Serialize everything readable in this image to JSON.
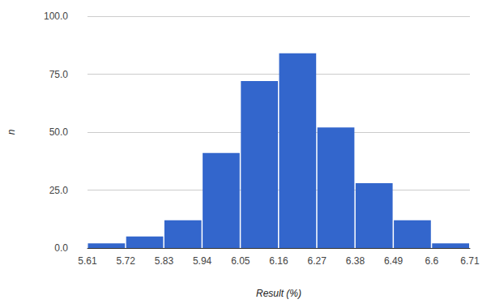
{
  "chart_data": {
    "type": "histogram",
    "x_label": "Result (%)",
    "y_label": "n",
    "bins": [
      5.61,
      5.72,
      5.83,
      5.94,
      6.05,
      6.16,
      6.27,
      6.38,
      6.49,
      6.6,
      6.71
    ],
    "values": [
      2,
      5,
      12,
      41,
      72,
      84,
      52,
      28,
      12,
      2
    ],
    "color": "#3366cc",
    "xlim": [
      5.61,
      6.71
    ],
    "xticks": [
      5.61,
      5.72,
      5.83,
      5.94,
      6.05,
      6.16,
      6.27,
      6.38,
      6.49,
      6.6,
      6.71
    ],
    "ylim": [
      0,
      100
    ],
    "yticks": [
      {
        "value": 0,
        "label": "0.0"
      },
      {
        "value": 25,
        "label": "25.0"
      },
      {
        "value": 50,
        "label": "50.0"
      },
      {
        "value": 75,
        "label": "75.0"
      },
      {
        "value": 100,
        "label": "100.0"
      }
    ],
    "grid": true
  }
}
